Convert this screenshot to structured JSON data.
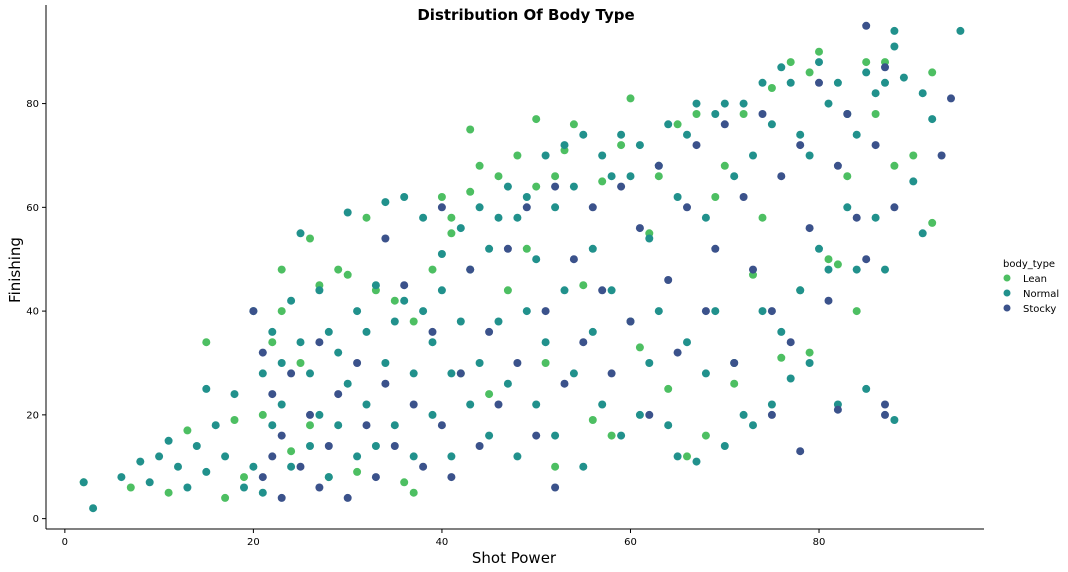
{
  "chart_data": {
    "type": "scatter",
    "title": "Distribution Of Body Type",
    "xlabel": "Shot Power",
    "ylabel": "Finishing",
    "xlim": [
      -2,
      97.5
    ],
    "ylim": [
      -2,
      99
    ],
    "xticks": [
      0,
      20,
      40,
      60,
      80
    ],
    "yticks": [
      0,
      20,
      40,
      60,
      80
    ],
    "grid": false,
    "legend": {
      "title": "body_type",
      "placement": "right"
    },
    "series": [
      {
        "name": "Lean",
        "color": "#4dbf62",
        "points": [
          [
            2,
            7
          ],
          [
            7,
            6
          ],
          [
            11,
            5
          ],
          [
            13,
            17
          ],
          [
            15,
            34
          ],
          [
            17,
            4
          ],
          [
            18,
            19
          ],
          [
            19,
            8
          ],
          [
            21,
            20
          ],
          [
            22,
            34
          ],
          [
            23,
            48
          ],
          [
            23,
            40
          ],
          [
            24,
            13
          ],
          [
            25,
            30
          ],
          [
            26,
            54
          ],
          [
            26,
            18
          ],
          [
            27,
            45
          ],
          [
            28,
            8
          ],
          [
            29,
            48
          ],
          [
            30,
            47
          ],
          [
            31,
            9
          ],
          [
            32,
            58
          ],
          [
            33,
            44
          ],
          [
            35,
            42
          ],
          [
            36,
            7
          ],
          [
            37,
            5
          ],
          [
            37,
            38
          ],
          [
            39,
            48
          ],
          [
            40,
            62
          ],
          [
            41,
            58
          ],
          [
            41,
            55
          ],
          [
            42,
            28
          ],
          [
            43,
            63
          ],
          [
            43,
            75
          ],
          [
            44,
            68
          ],
          [
            45,
            24
          ],
          [
            46,
            66
          ],
          [
            47,
            44
          ],
          [
            48,
            70
          ],
          [
            49,
            52
          ],
          [
            50,
            77
          ],
          [
            50,
            64
          ],
          [
            51,
            30
          ],
          [
            52,
            10
          ],
          [
            52,
            66
          ],
          [
            53,
            71
          ],
          [
            54,
            76
          ],
          [
            55,
            45
          ],
          [
            56,
            19
          ],
          [
            57,
            65
          ],
          [
            58,
            16
          ],
          [
            59,
            72
          ],
          [
            60,
            81
          ],
          [
            61,
            33
          ],
          [
            62,
            55
          ],
          [
            63,
            66
          ],
          [
            64,
            25
          ],
          [
            65,
            76
          ],
          [
            66,
            12
          ],
          [
            67,
            78
          ],
          [
            68,
            16
          ],
          [
            69,
            62
          ],
          [
            70,
            68
          ],
          [
            71,
            26
          ],
          [
            72,
            78
          ],
          [
            73,
            47
          ],
          [
            74,
            58
          ],
          [
            75,
            83
          ],
          [
            76,
            31
          ],
          [
            77,
            88
          ],
          [
            78,
            44
          ],
          [
            79,
            32
          ],
          [
            79,
            86
          ],
          [
            80,
            90
          ],
          [
            81,
            50
          ],
          [
            82,
            49
          ],
          [
            83,
            66
          ],
          [
            84,
            40
          ],
          [
            85,
            88
          ],
          [
            86,
            78
          ],
          [
            87,
            88
          ],
          [
            88,
            68
          ],
          [
            90,
            70
          ],
          [
            92,
            86
          ],
          [
            92,
            57
          ]
        ]
      },
      {
        "name": "Normal",
        "color": "#21918c",
        "points": [
          [
            2,
            7
          ],
          [
            3,
            2
          ],
          [
            6,
            8
          ],
          [
            8,
            11
          ],
          [
            9,
            7
          ],
          [
            10,
            12
          ],
          [
            11,
            15
          ],
          [
            12,
            10
          ],
          [
            13,
            6
          ],
          [
            14,
            14
          ],
          [
            15,
            25
          ],
          [
            15,
            9
          ],
          [
            16,
            18
          ],
          [
            17,
            12
          ],
          [
            18,
            24
          ],
          [
            19,
            6
          ],
          [
            20,
            40
          ],
          [
            20,
            10
          ],
          [
            21,
            28
          ],
          [
            21,
            5
          ],
          [
            22,
            36
          ],
          [
            22,
            18
          ],
          [
            23,
            30
          ],
          [
            23,
            22
          ],
          [
            24,
            42
          ],
          [
            24,
            10
          ],
          [
            25,
            55
          ],
          [
            25,
            34
          ],
          [
            26,
            28
          ],
          [
            26,
            14
          ],
          [
            27,
            44
          ],
          [
            27,
            20
          ],
          [
            28,
            36
          ],
          [
            28,
            8
          ],
          [
            29,
            32
          ],
          [
            29,
            18
          ],
          [
            30,
            59
          ],
          [
            30,
            26
          ],
          [
            31,
            40
          ],
          [
            31,
            12
          ],
          [
            32,
            36
          ],
          [
            32,
            22
          ],
          [
            33,
            45
          ],
          [
            33,
            14
          ],
          [
            34,
            61
          ],
          [
            34,
            30
          ],
          [
            35,
            38
          ],
          [
            35,
            18
          ],
          [
            36,
            62
          ],
          [
            36,
            42
          ],
          [
            37,
            28
          ],
          [
            37,
            12
          ],
          [
            38,
            58
          ],
          [
            38,
            40
          ],
          [
            39,
            34
          ],
          [
            39,
            20
          ],
          [
            40,
            51
          ],
          [
            40,
            44
          ],
          [
            41,
            28
          ],
          [
            41,
            12
          ],
          [
            42,
            56
          ],
          [
            42,
            38
          ],
          [
            43,
            48
          ],
          [
            43,
            22
          ],
          [
            44,
            60
          ],
          [
            44,
            30
          ],
          [
            45,
            52
          ],
          [
            45,
            16
          ],
          [
            46,
            58
          ],
          [
            46,
            38
          ],
          [
            47,
            64
          ],
          [
            47,
            26
          ],
          [
            48,
            58
          ],
          [
            48,
            12
          ],
          [
            49,
            62
          ],
          [
            49,
            40
          ],
          [
            50,
            50
          ],
          [
            50,
            22
          ],
          [
            51,
            70
          ],
          [
            51,
            34
          ],
          [
            52,
            60
          ],
          [
            52,
            16
          ],
          [
            53,
            72
          ],
          [
            53,
            44
          ],
          [
            54,
            64
          ],
          [
            54,
            28
          ],
          [
            55,
            74
          ],
          [
            55,
            10
          ],
          [
            56,
            52
          ],
          [
            56,
            36
          ],
          [
            57,
            70
          ],
          [
            57,
            22
          ],
          [
            58,
            66
          ],
          [
            58,
            44
          ],
          [
            59,
            74
          ],
          [
            59,
            16
          ],
          [
            60,
            66
          ],
          [
            60,
            38
          ],
          [
            61,
            72
          ],
          [
            61,
            20
          ],
          [
            62,
            54
          ],
          [
            62,
            30
          ],
          [
            63,
            68
          ],
          [
            63,
            40
          ],
          [
            64,
            76
          ],
          [
            64,
            18
          ],
          [
            65,
            62
          ],
          [
            65,
            12
          ],
          [
            66,
            74
          ],
          [
            66,
            34
          ],
          [
            67,
            80
          ],
          [
            67,
            11
          ],
          [
            68,
            58
          ],
          [
            68,
            28
          ],
          [
            69,
            78
          ],
          [
            69,
            40
          ],
          [
            70,
            80
          ],
          [
            70,
            14
          ],
          [
            71,
            66
          ],
          [
            71,
            30
          ],
          [
            72,
            80
          ],
          [
            72,
            20
          ],
          [
            73,
            70
          ],
          [
            73,
            18
          ],
          [
            74,
            84
          ],
          [
            74,
            40
          ],
          [
            75,
            76
          ],
          [
            75,
            22
          ],
          [
            76,
            87
          ],
          [
            76,
            36
          ],
          [
            77,
            84
          ],
          [
            77,
            27
          ],
          [
            78,
            74
          ],
          [
            78,
            44
          ],
          [
            79,
            70
          ],
          [
            79,
            30
          ],
          [
            80,
            88
          ],
          [
            80,
            52
          ],
          [
            81,
            80
          ],
          [
            81,
            48
          ],
          [
            82,
            84
          ],
          [
            82,
            22
          ],
          [
            83,
            78
          ],
          [
            83,
            60
          ],
          [
            84,
            74
          ],
          [
            84,
            48
          ],
          [
            85,
            86
          ],
          [
            85,
            25
          ],
          [
            86,
            82
          ],
          [
            86,
            58
          ],
          [
            87,
            84
          ],
          [
            87,
            48
          ],
          [
            88,
            94
          ],
          [
            88,
            91
          ],
          [
            88,
            19
          ],
          [
            89,
            85
          ],
          [
            90,
            65
          ],
          [
            91,
            82
          ],
          [
            91,
            55
          ],
          [
            92,
            77
          ],
          [
            95,
            94
          ]
        ]
      },
      {
        "name": "Stocky",
        "color": "#3b528b",
        "points": [
          [
            20,
            40
          ],
          [
            21,
            32
          ],
          [
            21,
            8
          ],
          [
            22,
            24
          ],
          [
            22,
            12
          ],
          [
            23,
            16
          ],
          [
            23,
            4
          ],
          [
            24,
            28
          ],
          [
            25,
            10
          ],
          [
            26,
            20
          ],
          [
            27,
            34
          ],
          [
            27,
            6
          ],
          [
            28,
            14
          ],
          [
            29,
            24
          ],
          [
            30,
            4
          ],
          [
            31,
            30
          ],
          [
            32,
            18
          ],
          [
            33,
            8
          ],
          [
            34,
            54
          ],
          [
            34,
            26
          ],
          [
            35,
            14
          ],
          [
            36,
            45
          ],
          [
            37,
            22
          ],
          [
            38,
            10
          ],
          [
            39,
            36
          ],
          [
            40,
            18
          ],
          [
            40,
            60
          ],
          [
            41,
            8
          ],
          [
            42,
            28
          ],
          [
            43,
            48
          ],
          [
            44,
            14
          ],
          [
            45,
            36
          ],
          [
            46,
            22
          ],
          [
            47,
            52
          ],
          [
            48,
            30
          ],
          [
            49,
            60
          ],
          [
            50,
            16
          ],
          [
            51,
            40
          ],
          [
            52,
            6
          ],
          [
            52,
            64
          ],
          [
            53,
            26
          ],
          [
            54,
            50
          ],
          [
            55,
            34
          ],
          [
            56,
            60
          ],
          [
            57,
            44
          ],
          [
            58,
            28
          ],
          [
            59,
            64
          ],
          [
            60,
            38
          ],
          [
            61,
            56
          ],
          [
            62,
            20
          ],
          [
            63,
            68
          ],
          [
            64,
            46
          ],
          [
            65,
            32
          ],
          [
            66,
            60
          ],
          [
            67,
            72
          ],
          [
            68,
            40
          ],
          [
            69,
            52
          ],
          [
            70,
            76
          ],
          [
            71,
            30
          ],
          [
            72,
            62
          ],
          [
            73,
            48
          ],
          [
            74,
            78
          ],
          [
            75,
            20
          ],
          [
            75,
            40
          ],
          [
            76,
            66
          ],
          [
            77,
            34
          ],
          [
            78,
            13
          ],
          [
            78,
            72
          ],
          [
            79,
            56
          ],
          [
            80,
            84
          ],
          [
            81,
            42
          ],
          [
            82,
            68
          ],
          [
            82,
            21
          ],
          [
            83,
            78
          ],
          [
            84,
            58
          ],
          [
            85,
            95
          ],
          [
            85,
            50
          ],
          [
            86,
            72
          ],
          [
            87,
            87
          ],
          [
            87,
            22
          ],
          [
            87,
            20
          ],
          [
            88,
            60
          ],
          [
            93,
            70
          ],
          [
            94,
            81
          ]
        ]
      }
    ]
  }
}
